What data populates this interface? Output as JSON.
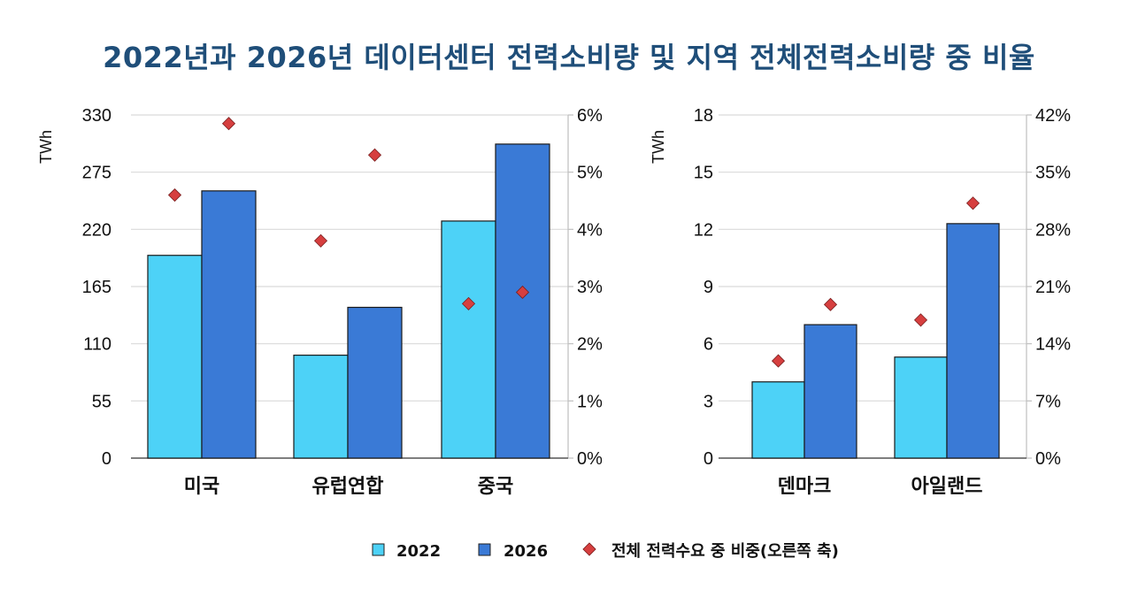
{
  "title": "2022년과 2026년 데이터센터 전력소비량 및 지역 전체전력소비량 중 비율",
  "colors": {
    "y2022": "#4dd2f7",
    "y2026": "#3a7ad6",
    "share": "#d63f3f",
    "title": "#1f4e79"
  },
  "legend": {
    "s2022": "2022",
    "s2026": "2026",
    "share": "전체 전력수요 중 비중(오른쪽 축)"
  },
  "chart_data": [
    {
      "type": "bar",
      "ylabel": "TWh",
      "categories": [
        "미국",
        "유럽연합",
        "중국"
      ],
      "ylim": [
        0,
        330
      ],
      "yticks": [
        "0",
        "55",
        "110",
        "165",
        "220",
        "275",
        "330"
      ],
      "y2lim": [
        0,
        6
      ],
      "y2ticks": [
        "0%",
        "1%",
        "2%",
        "3%",
        "4%",
        "5%",
        "6%"
      ],
      "series": [
        {
          "name": "2022",
          "values": [
            195,
            99,
            228
          ]
        },
        {
          "name": "2026",
          "values": [
            257,
            145,
            302
          ]
        }
      ],
      "share_series": {
        "name": "전체 전력수요 중 비중(오른쪽 축)",
        "values_2022": [
          4.6,
          3.8,
          2.7
        ],
        "values_2026": [
          5.85,
          5.3,
          2.9
        ]
      }
    },
    {
      "type": "bar",
      "ylabel": "TWh",
      "categories": [
        "덴마크",
        "아일랜드"
      ],
      "ylim": [
        0,
        18
      ],
      "yticks": [
        "0",
        "3",
        "6",
        "9",
        "12",
        "15",
        "18"
      ],
      "y2lim": [
        0,
        42
      ],
      "y2ticks": [
        "0%",
        "7%",
        "14%",
        "21%",
        "28%",
        "35%",
        "42%"
      ],
      "series": [
        {
          "name": "2022",
          "values": [
            4.0,
            5.3
          ]
        },
        {
          "name": "2026",
          "values": [
            7.0,
            12.3
          ]
        }
      ],
      "share_series": {
        "name": "전체 전력수요 중 비중(오른쪽 축)",
        "values_2022": [
          11.9,
          16.9
        ],
        "values_2026": [
          18.8,
          31.2
        ]
      }
    }
  ]
}
